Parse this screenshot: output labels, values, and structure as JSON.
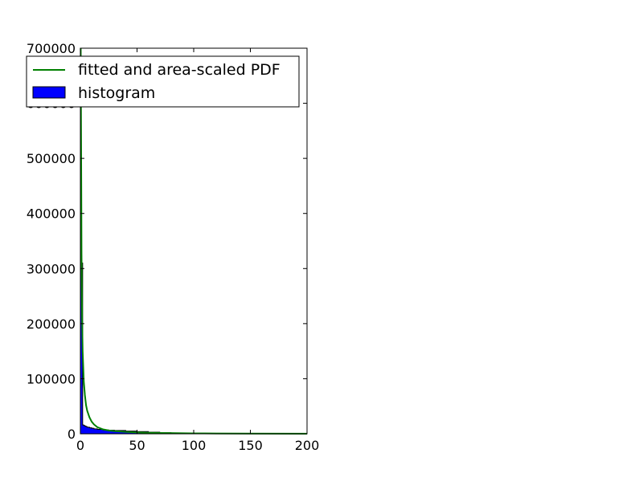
{
  "chart_data": {
    "type": "line",
    "title": "",
    "xlabel": "",
    "ylabel": "",
    "xlim": [
      0,
      200
    ],
    "ylim": [
      0,
      700000
    ],
    "x_ticks": [
      0,
      50,
      100,
      150,
      200
    ],
    "x_tick_labels": [
      "0",
      "50",
      "100",
      "150",
      "200"
    ],
    "y_ticks": [
      0,
      100000,
      200000,
      300000,
      400000,
      500000,
      600000,
      700000
    ],
    "y_tick_labels": [
      "0",
      "100000",
      "200000",
      "300000",
      "400000",
      "500000",
      "600000",
      "700000"
    ],
    "grid": false,
    "legend_position": "upper-left",
    "series": [
      {
        "name": "fitted and area-scaled PDF",
        "kind": "line",
        "color": "#008000",
        "x": [
          0.3,
          0.5,
          0.8,
          1,
          1.5,
          2,
          3,
          4,
          5,
          6,
          8,
          10,
          12,
          15,
          20,
          25,
          30,
          40,
          50,
          60,
          80,
          100,
          120,
          150,
          200
        ],
        "y": [
          700000,
          600000,
          450000,
          330000,
          210000,
          150000,
          95000,
          70000,
          52000,
          42000,
          30000,
          22000,
          17000,
          12000,
          8000,
          6000,
          5000,
          3500,
          2500,
          1900,
          1200,
          800,
          600,
          400,
          200
        ]
      },
      {
        "name": "histogram",
        "kind": "histogram",
        "color": "#0000ff",
        "x": [
          0,
          1,
          2,
          3,
          4,
          5,
          6,
          8,
          10,
          12,
          15,
          20,
          25,
          30,
          40,
          50,
          60,
          70,
          80,
          100,
          150,
          200
        ],
        "y": [
          310000,
          310000,
          16000,
          15000,
          14000,
          13000,
          12000,
          11000,
          10000,
          9000,
          8000,
          7000,
          6500,
          6000,
          5000,
          4000,
          3000,
          2000,
          1200,
          800,
          300,
          100
        ]
      }
    ]
  }
}
